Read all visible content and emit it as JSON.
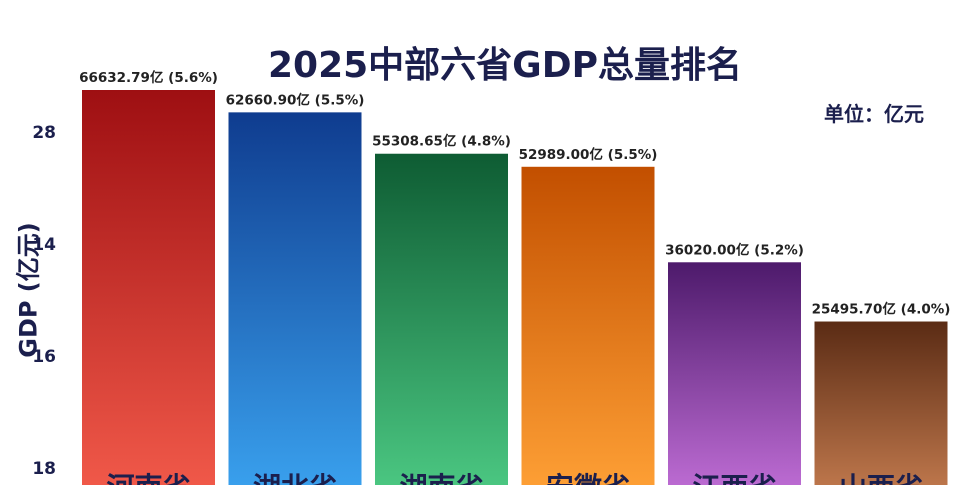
{
  "chart_data": {
    "type": "bar",
    "title": "2025中部六省GDP总量排名",
    "unit_label": "单位：亿元",
    "ylabel": "GDP (亿元)",
    "yticks": [
      "28",
      "14",
      "16",
      "18"
    ],
    "categories": [
      "河南省",
      "湖北省",
      "湖南省",
      "安徽省",
      "江西省",
      "山西省"
    ],
    "values": [
      66632.79,
      62660.9,
      55308.65,
      52989.0,
      36020.0,
      25495.7
    ],
    "data_labels": [
      "66632.79亿 (5.6%)",
      "62660.90亿 (5.5%)",
      "55308.65亿 (4.8%)",
      "52989.00亿 (5.5%)",
      "36020.00亿 (5.2%)",
      "25495.70亿 (4.0%)"
    ],
    "growth_rates": [
      "5.6%",
      "5.5%",
      "4.8%",
      "5.5%",
      "5.2%",
      "4.0%"
    ],
    "colors": [
      [
        "#9e0f12",
        "#f25a4a"
      ],
      [
        "#0f3c8f",
        "#3aa2ef"
      ],
      [
        "#0e5c33",
        "#4cc983"
      ],
      [
        "#c24f00",
        "#ffa136"
      ],
      [
        "#4d1a6b",
        "#c06ed6"
      ],
      [
        "#5a2b14",
        "#c27a4e"
      ]
    ],
    "grid": false,
    "legend": "none"
  }
}
